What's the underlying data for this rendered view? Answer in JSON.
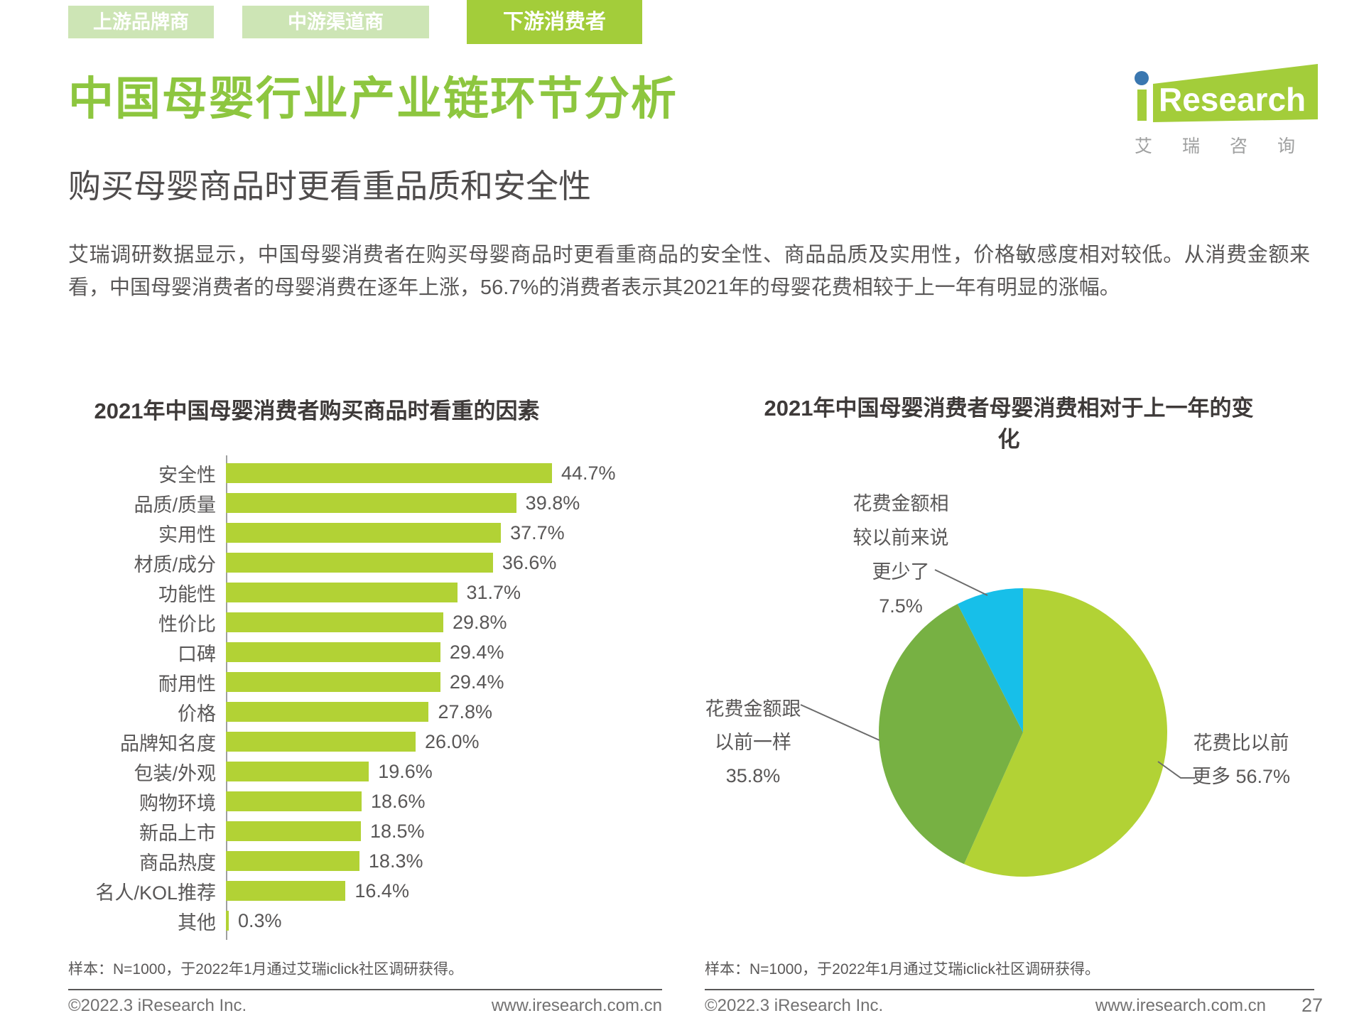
{
  "tabs": [
    {
      "label": "上游品牌商",
      "active": false
    },
    {
      "label": "中游渠道商",
      "active": false
    },
    {
      "label": "下游消费者",
      "active": true
    }
  ],
  "logo": {
    "brand": "iResearch",
    "cn": "艾瑞咨询"
  },
  "header": {
    "title": "中国母婴行业产业链环节分析",
    "subtitle": "购买母婴商品时更看重品质和安全性",
    "paragraph": "艾瑞调研数据显示，中国母婴消费者在购买母婴商品时更看重商品的安全性、商品品质及实用性，价格敏感度相对较低。从消费金额来看，中国母婴消费者的母婴消费在逐年上涨，56.7%的消费者表示其2021年的母婴花费相较于上一年有明显的涨幅。"
  },
  "chart_data": [
    {
      "type": "bar",
      "orientation": "horizontal",
      "title": "2021年中国母婴消费者购买商品时看重的因素",
      "categories": [
        "安全性",
        "品质/质量",
        "实用性",
        "材质/成分",
        "功能性",
        "性价比",
        "口碑",
        "耐用性",
        "价格",
        "品牌知名度",
        "包装/外观",
        "购物环境",
        "新品上市",
        "商品热度",
        "名人/KOL推荐",
        "其他"
      ],
      "values": [
        44.7,
        39.8,
        37.7,
        36.6,
        31.7,
        29.8,
        29.4,
        29.4,
        27.8,
        26.0,
        19.6,
        18.6,
        18.5,
        18.3,
        16.4,
        0.3
      ],
      "unit": "%",
      "bar_color": "#b2d235",
      "xlim": [
        0,
        47
      ],
      "grid": false
    },
    {
      "type": "pie",
      "title": "2021年中国母婴消费者母婴消费相对于上一年的变化",
      "direction": "clockwise",
      "start_angle_deg": 0,
      "slices": [
        {
          "label": "花费比以前更多",
          "value": 56.7,
          "color": "#b2d235"
        },
        {
          "label": "花费金额跟以前一样",
          "value": 35.8,
          "color": "#77b143"
        },
        {
          "label": "花费金额相较以前来说更少了",
          "value": 7.5,
          "color": "#17bfe9"
        }
      ],
      "annotations": {
        "less": [
          "花费金额相",
          "较以前来说",
          "更少了",
          "7.5%"
        ],
        "same": [
          "花费金额跟",
          "以前一样",
          "35.8%"
        ],
        "more": [
          "花费比以前",
          "更多 56.7%"
        ]
      }
    }
  ],
  "footers": {
    "left": {
      "sample": "样本：N=1000，于2022年1月通过艾瑞iclick社区调研获得。",
      "copyright": "©2022.3 iResearch Inc.",
      "url": "www.iresearch.com.cn"
    },
    "right": {
      "sample": "样本：N=1000，于2022年1月通过艾瑞iclick社区调研获得。",
      "copyright": "©2022.3 iResearch Inc.",
      "url": "www.iresearch.com.cn"
    },
    "page_number": "27"
  }
}
